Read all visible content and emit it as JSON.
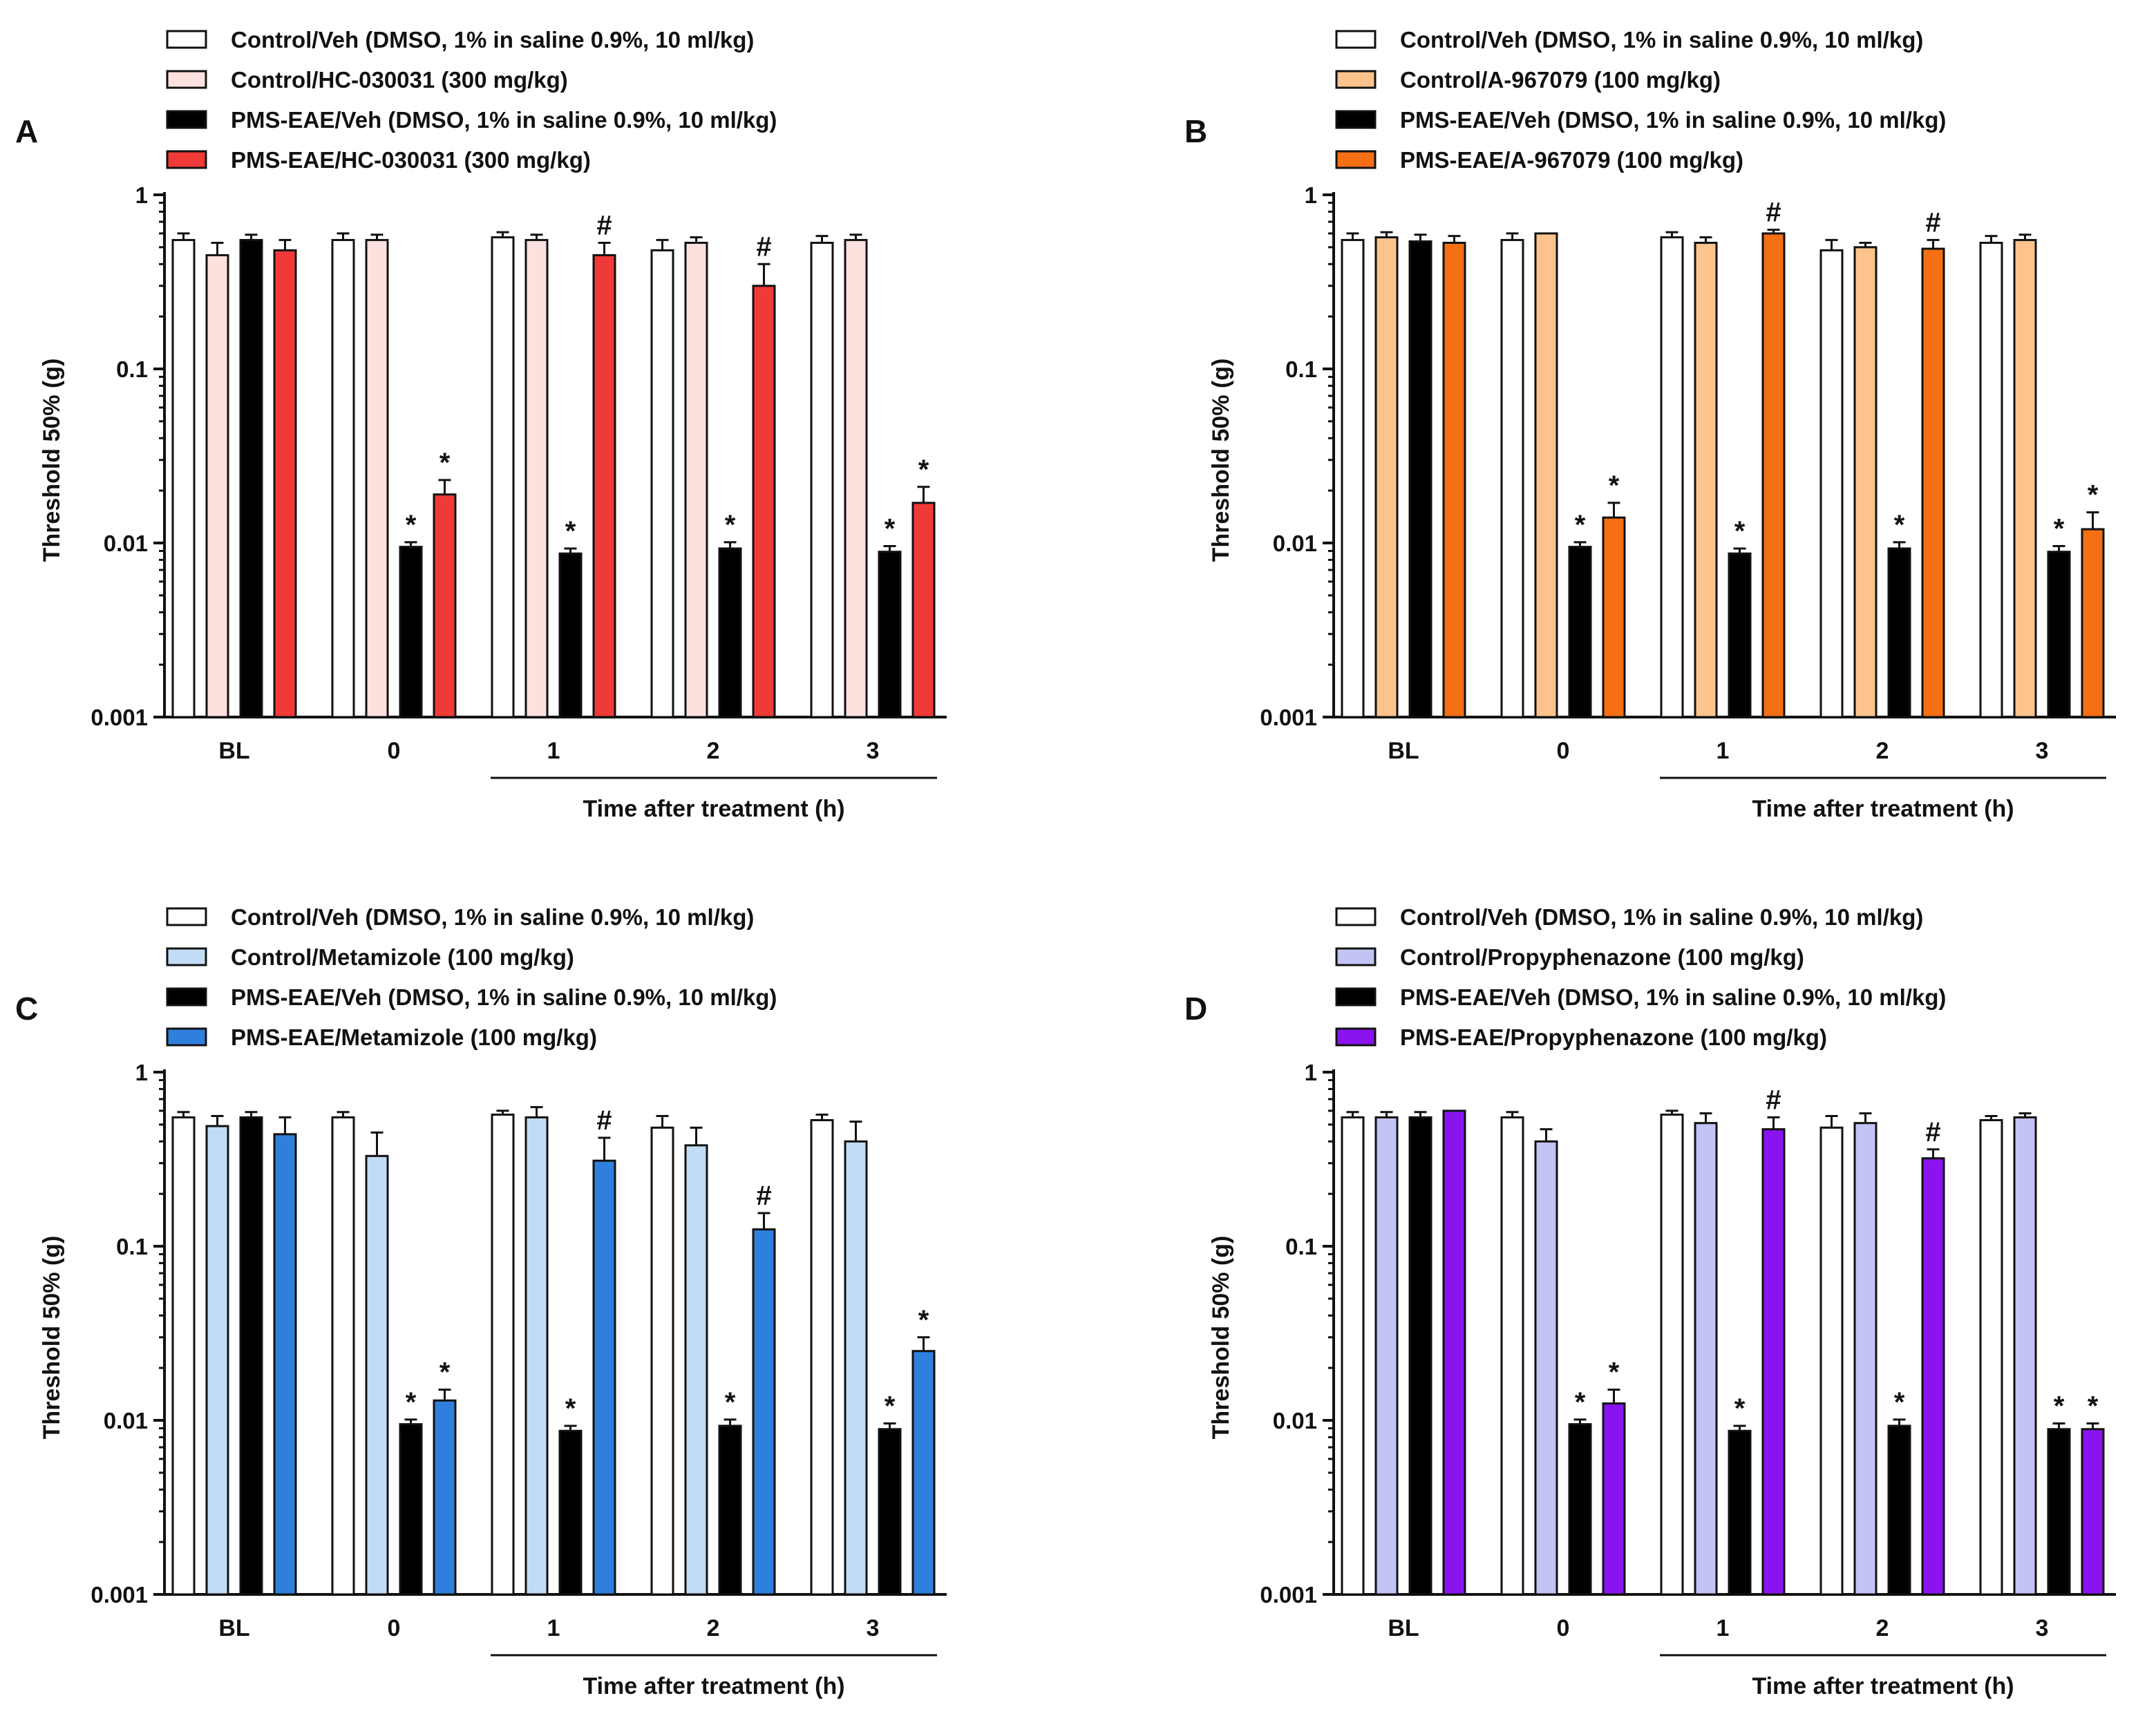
{
  "figure": {
    "panels": [
      "A",
      "B",
      "C",
      "D"
    ]
  },
  "colors": {
    "control_veh": "#ffffff",
    "pms_veh": "#000000",
    "a_control": "#fde1de",
    "a_pms": "#f03a37",
    "b_control": "#fcc48c",
    "b_pms": "#f56f15",
    "c_control": "#c3dcf6",
    "c_pms": "#2f7fdc",
    "d_control": "#c3c3f5",
    "d_pms": "#8a14f0",
    "stroke": "#111111"
  },
  "chart_data": [
    {
      "panel": "A",
      "type": "bar",
      "yscale": "log",
      "ylabel": "Threshold 50% (g)",
      "ylim": [
        0.001,
        1
      ],
      "yticks": [
        "0.001",
        "0.01",
        "0.1",
        "1"
      ],
      "xlabel": "Time after treatment (h)",
      "categories": [
        "BL",
        "0",
        "1",
        "2",
        "3"
      ],
      "legend": [
        "Control/Veh (DMSO, 1% in saline 0.9%, 10 ml/kg)",
        "Control/HC-030031 (300 mg/kg)",
        "PMS-EAE/Veh (DMSO, 1% in saline 0.9%, 10 ml/kg)",
        "PMS-EAE/HC-030031 (300 mg/kg)"
      ],
      "series": [
        {
          "name": "Control/Veh (DMSO, 1% in saline 0.9%, 10 ml/kg)",
          "values": [
            0.55,
            0.55,
            0.57,
            0.48,
            0.53
          ],
          "errors": [
            0.6,
            0.6,
            0.61,
            0.55,
            0.58
          ],
          "labels": [
            "",
            "",
            "",
            "",
            ""
          ]
        },
        {
          "name": "Control/HC-030031 (300 mg/kg)",
          "values": [
            0.45,
            0.55,
            0.55,
            0.53,
            0.55
          ],
          "errors": [
            0.53,
            0.59,
            0.59,
            0.57,
            0.59
          ],
          "labels": [
            "",
            "",
            "",
            "",
            ""
          ]
        },
        {
          "name": "PMS-EAE/Veh (DMSO, 1% in saline 0.9%, 10 ml/kg)",
          "values": [
            0.55,
            0.0095,
            0.0087,
            0.0093,
            0.0089
          ],
          "errors": [
            0.59,
            0.0101,
            0.0093,
            0.0101,
            0.0096
          ],
          "labels": [
            "",
            "*",
            "*",
            "*",
            "*"
          ]
        },
        {
          "name": "PMS-EAE/HC-030031 (300 mg/kg)",
          "values": [
            0.48,
            0.019,
            0.45,
            0.3,
            0.017
          ],
          "errors": [
            0.55,
            0.023,
            0.53,
            0.4,
            0.021
          ],
          "labels": [
            "",
            "*",
            "#",
            "#",
            "*"
          ]
        }
      ]
    },
    {
      "panel": "B",
      "type": "bar",
      "yscale": "log",
      "ylabel": "Threshold 50% (g)",
      "ylim": [
        0.001,
        1
      ],
      "yticks": [
        "0.001",
        "0.01",
        "0.1",
        "1"
      ],
      "xlabel": "Time after treatment (h)",
      "categories": [
        "BL",
        "0",
        "1",
        "2",
        "3"
      ],
      "legend": [
        "Control/Veh (DMSO, 1% in saline 0.9%, 10 ml/kg)",
        "Control/A-967079 (100 mg/kg)",
        "PMS-EAE/Veh (DMSO, 1% in saline 0.9%, 10 ml/kg)",
        "PMS-EAE/A-967079 (100 mg/kg)"
      ],
      "series": [
        {
          "name": "Control/Veh (DMSO, 1% in saline 0.9%, 10 ml/kg)",
          "values": [
            0.55,
            0.55,
            0.57,
            0.48,
            0.53
          ],
          "errors": [
            0.6,
            0.6,
            0.61,
            0.55,
            0.58
          ],
          "labels": [
            "",
            "",
            "",
            "",
            ""
          ]
        },
        {
          "name": "Control/A-967079 (100 mg/kg)",
          "values": [
            0.57,
            0.6,
            0.53,
            0.5,
            0.55
          ],
          "errors": [
            0.61,
            0.6,
            0.57,
            0.53,
            0.59
          ],
          "labels": [
            "",
            "",
            "",
            "",
            ""
          ]
        },
        {
          "name": "PMS-EAE/Veh (DMSO, 1% in saline 0.9%, 10 ml/kg)",
          "values": [
            0.54,
            0.0095,
            0.0087,
            0.0093,
            0.0089
          ],
          "errors": [
            0.59,
            0.0101,
            0.0093,
            0.0101,
            0.0096
          ],
          "labels": [
            "",
            "*",
            "*",
            "*",
            "*"
          ]
        },
        {
          "name": "PMS-EAE/A-967079 (100 mg/kg)",
          "values": [
            0.53,
            0.014,
            0.6,
            0.49,
            0.012
          ],
          "errors": [
            0.58,
            0.017,
            0.63,
            0.55,
            0.015
          ],
          "labels": [
            "",
            "*",
            "#",
            "#",
            "*"
          ]
        }
      ]
    },
    {
      "panel": "C",
      "type": "bar",
      "yscale": "log",
      "ylabel": "Threshold 50% (g)",
      "ylim": [
        0.001,
        1
      ],
      "yticks": [
        "0.001",
        "0.01",
        "0.1",
        "1"
      ],
      "xlabel": "Time after treatment (h)",
      "categories": [
        "BL",
        "0",
        "1",
        "2",
        "3"
      ],
      "legend": [
        "Control/Veh (DMSO, 1% in saline 0.9%, 10 ml/kg)",
        "Control/Metamizole (100 mg/kg)",
        "PMS-EAE/Veh (DMSO, 1% in saline 0.9%, 10 ml/kg)",
        "PMS-EAE/Metamizole (100 mg/kg)"
      ],
      "series": [
        {
          "name": "Control/Veh (DMSO, 1% in saline 0.9%, 10 ml/kg)",
          "values": [
            0.55,
            0.55,
            0.57,
            0.48,
            0.53
          ],
          "errors": [
            0.59,
            0.59,
            0.6,
            0.56,
            0.57
          ],
          "labels": [
            "",
            "",
            "",
            "",
            ""
          ]
        },
        {
          "name": "Control/Metamizole (100 mg/kg)",
          "values": [
            0.49,
            0.33,
            0.55,
            0.38,
            0.4
          ],
          "errors": [
            0.56,
            0.45,
            0.63,
            0.48,
            0.52
          ],
          "labels": [
            "",
            "",
            "",
            "",
            ""
          ]
        },
        {
          "name": "PMS-EAE/Veh (DMSO, 1% in saline 0.9%, 10 ml/kg)",
          "values": [
            0.55,
            0.0095,
            0.0087,
            0.0093,
            0.0089
          ],
          "errors": [
            0.59,
            0.0101,
            0.0093,
            0.0101,
            0.0096
          ],
          "labels": [
            "",
            "*",
            "*",
            "*",
            "*"
          ]
        },
        {
          "name": "PMS-EAE/Metamizole (100 mg/kg)",
          "values": [
            0.44,
            0.013,
            0.31,
            0.125,
            0.025
          ],
          "errors": [
            0.55,
            0.015,
            0.42,
            0.155,
            0.03
          ],
          "labels": [
            "",
            "*",
            "#",
            "#",
            "*"
          ]
        }
      ]
    },
    {
      "panel": "D",
      "type": "bar",
      "yscale": "log",
      "ylabel": "Threshold 50% (g)",
      "ylim": [
        0.001,
        1
      ],
      "yticks": [
        "0.001",
        "0.01",
        "0.1",
        "1"
      ],
      "xlabel": "Time after treatment (h)",
      "categories": [
        "BL",
        "0",
        "1",
        "2",
        "3"
      ],
      "legend": [
        "Control/Veh (DMSO, 1% in saline 0.9%, 10 ml/kg)",
        "Control/Propyphenazone (100 mg/kg)",
        "PMS-EAE/Veh (DMSO, 1% in saline 0.9%, 10 ml/kg)",
        "PMS-EAE/Propyphenazone (100 mg/kg)"
      ],
      "series": [
        {
          "name": "Control/Veh (DMSO, 1% in saline 0.9%, 10 ml/kg)",
          "values": [
            0.55,
            0.55,
            0.57,
            0.48,
            0.53
          ],
          "errors": [
            0.59,
            0.59,
            0.6,
            0.56,
            0.56
          ],
          "labels": [
            "",
            "",
            "",
            "",
            ""
          ]
        },
        {
          "name": "Control/Propyphenazone (100 mg/kg)",
          "values": [
            0.55,
            0.4,
            0.51,
            0.51,
            0.55
          ],
          "errors": [
            0.59,
            0.47,
            0.58,
            0.58,
            0.58
          ],
          "labels": [
            "",
            "",
            "",
            "",
            ""
          ]
        },
        {
          "name": "PMS-EAE/Veh (DMSO, 1% in saline 0.9%, 10 ml/kg)",
          "values": [
            0.55,
            0.0095,
            0.0087,
            0.0093,
            0.0089
          ],
          "errors": [
            0.59,
            0.0101,
            0.0093,
            0.0101,
            0.0096
          ],
          "labels": [
            "",
            "*",
            "*",
            "*",
            "*"
          ]
        },
        {
          "name": "PMS-EAE/Propyphenazone (100 mg/kg)",
          "values": [
            0.6,
            0.0125,
            0.47,
            0.32,
            0.0089
          ],
          "errors": [
            0.6,
            0.015,
            0.55,
            0.36,
            0.0096
          ],
          "labels": [
            "",
            "*",
            "#",
            "#",
            "*"
          ]
        }
      ]
    }
  ]
}
